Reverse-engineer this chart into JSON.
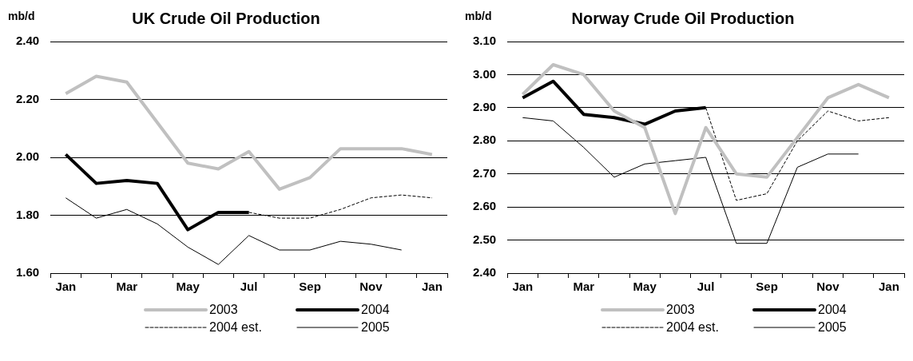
{
  "chart_data": [
    {
      "type": "line",
      "title": "UK Crude Oil Production",
      "ylabel": "mb/d",
      "categories": [
        "Jan",
        null,
        "Mar",
        null,
        "May",
        null,
        "Jul",
        null,
        "Sep",
        null,
        "Nov",
        null,
        "Jan"
      ],
      "ylim": [
        1.6,
        2.4
      ],
      "yticks": [
        {
          "value": 1.6,
          "label": "1.60"
        },
        {
          "value": 1.8,
          "label": "1.80"
        },
        {
          "value": 2.0,
          "label": "2.00"
        },
        {
          "value": 2.2,
          "label": "2.20"
        },
        {
          "value": 2.4,
          "label": "2.40"
        }
      ],
      "grid": "y",
      "legend": "bottom",
      "marker": "none",
      "series": [
        {
          "name": "2003",
          "color": "#c0c0c0",
          "values": [
            2.22,
            2.28,
            2.26,
            2.12,
            1.98,
            1.96,
            2.02,
            1.89,
            1.93,
            2.03,
            2.03,
            2.03,
            2.01
          ]
        },
        {
          "name": "2004",
          "color": "#000000",
          "values": [
            2.01,
            1.91,
            1.92,
            1.91,
            1.75,
            1.81,
            1.81,
            null,
            null,
            null,
            null,
            null,
            null
          ]
        },
        {
          "name": "2004 est.",
          "color": "#000000",
          "line_style": "dashed",
          "values": [
            null,
            null,
            null,
            null,
            null,
            null,
            1.81,
            1.79,
            1.79,
            1.82,
            1.86,
            1.87,
            1.86
          ]
        },
        {
          "name": "2005",
          "color": "#000000",
          "values": [
            1.86,
            1.79,
            1.82,
            1.77,
            1.69,
            1.63,
            1.73,
            1.68,
            1.68,
            1.71,
            1.7,
            1.68,
            null
          ]
        }
      ]
    },
    {
      "type": "line",
      "title": "Norway Crude Oil Production",
      "ylabel": "mb/d",
      "categories": [
        "Jan",
        null,
        "Mar",
        null,
        "May",
        null,
        "Jul",
        null,
        "Sep",
        null,
        "Nov",
        null,
        "Jan"
      ],
      "ylim": [
        2.4,
        3.1
      ],
      "yticks": [
        {
          "value": 2.4,
          "label": "2.40"
        },
        {
          "value": 2.5,
          "label": "2.50"
        },
        {
          "value": 2.6,
          "label": "2.60"
        },
        {
          "value": 2.7,
          "label": "2.70"
        },
        {
          "value": 2.8,
          "label": "2.80"
        },
        {
          "value": 2.9,
          "label": "2.90"
        },
        {
          "value": 3.0,
          "label": "3.00"
        },
        {
          "value": 3.1,
          "label": "3.10"
        }
      ],
      "grid": "y",
      "legend": "bottom",
      "marker": "none",
      "series": [
        {
          "name": "2003",
          "color": "#c0c0c0",
          "values": [
            2.94,
            3.03,
            3.0,
            2.89,
            2.84,
            2.58,
            2.84,
            2.7,
            2.69,
            2.81,
            2.93,
            2.97,
            2.93
          ]
        },
        {
          "name": "2004",
          "color": "#000000",
          "values": [
            2.93,
            2.98,
            2.88,
            2.87,
            2.85,
            2.89,
            2.9,
            null,
            null,
            null,
            null,
            null,
            null
          ]
        },
        {
          "name": "2004 est.",
          "color": "#000000",
          "line_style": "dashed",
          "values": [
            null,
            null,
            null,
            null,
            null,
            null,
            2.9,
            2.62,
            2.64,
            2.8,
            2.89,
            2.86,
            2.87
          ]
        },
        {
          "name": "2005",
          "color": "#000000",
          "values": [
            2.87,
            2.86,
            2.78,
            2.69,
            2.73,
            2.74,
            2.75,
            2.49,
            2.49,
            2.72,
            2.76,
            2.76,
            null
          ]
        }
      ]
    }
  ]
}
